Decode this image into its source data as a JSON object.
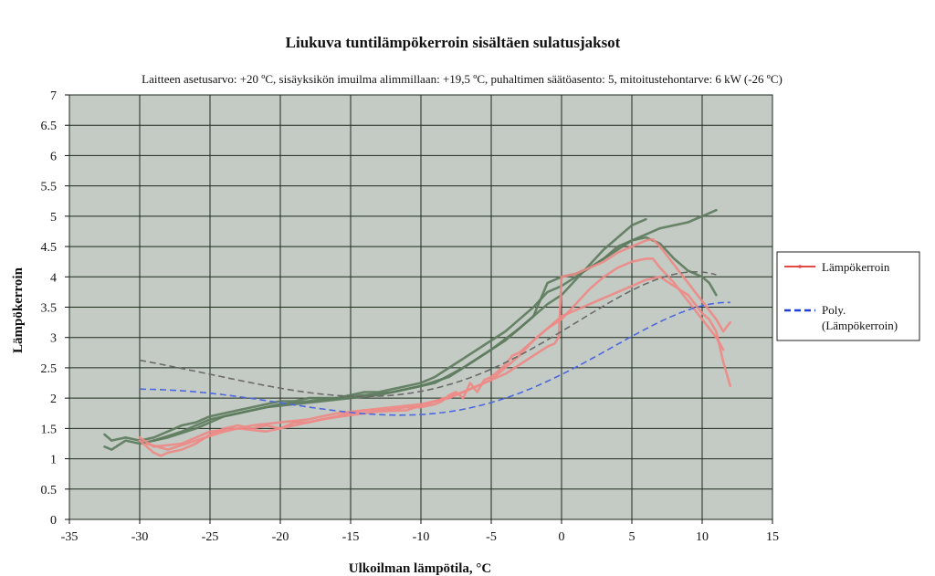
{
  "chart_data": {
    "type": "line",
    "title": "Liukuva tuntilämpökerroin sisältäen sulatusjaksot",
    "subtitle": "Laitteen asetusarvo: +20 ºC, sisäyksikön imuilma alimmillaan: +19,5 ºC, puhaltimen säätöasento: 5, mitoitustehontarve: 6 kW (-26 ºC)",
    "xlabel": "Ulkoilman lämpötila, °C",
    "ylabel": "Lämpökerroin",
    "xlim": [
      -35,
      15
    ],
    "ylim": [
      0,
      7
    ],
    "x_ticks": [
      "-35",
      "-30",
      "-25",
      "-20",
      "-15",
      "-10",
      "-5",
      "0",
      "5",
      "10",
      "15"
    ],
    "y_ticks": [
      "0",
      "0.5",
      "1",
      "1.5",
      "2",
      "2.5",
      "3",
      "3.5",
      "4",
      "4.5",
      "5",
      "5.5",
      "6",
      "6.5",
      "7"
    ],
    "grid": true,
    "legend_position": "right",
    "legend": [
      "Lämpökerroin",
      "Poly.\n(Lämpökerroin)"
    ],
    "colors": {
      "plot_bg": "#c4cbc4",
      "grid": "#1c2a1c",
      "pink": "#ee8a86",
      "green": "#5d7b5d",
      "poly_blue": "#4c68e0",
      "poly_dark": "#6a6a6a",
      "legend_red": "#e24a48",
      "legend_blue": "#1f3fd8"
    },
    "series": [
      {
        "name": "Lämpökerroin",
        "color": "pink",
        "segments": [
          [
            [
              -30,
              1.3
            ],
            [
              -29.5,
              1.2
            ],
            [
              -29,
              1.1
            ],
            [
              -28.5,
              1.05
            ],
            [
              -28,
              1.1
            ],
            [
              -27,
              1.15
            ],
            [
              -26,
              1.25
            ],
            [
              -25,
              1.4
            ],
            [
              -24,
              1.5
            ],
            [
              -23,
              1.55
            ],
            [
              -22,
              1.5
            ],
            [
              -21,
              1.55
            ],
            [
              -20,
              1.5
            ],
            [
              -19,
              1.6
            ],
            [
              -18,
              1.6
            ],
            [
              -17,
              1.65
            ],
            [
              -16,
              1.7
            ],
            [
              -15,
              1.75
            ],
            [
              -14,
              1.8
            ],
            [
              -13,
              1.8
            ],
            [
              -12,
              1.82
            ],
            [
              -11,
              1.85
            ],
            [
              -10,
              1.85
            ],
            [
              -9,
              1.9
            ],
            [
              -8.5,
              1.95
            ],
            [
              -8,
              2.05
            ],
            [
              -7.5,
              2.1
            ],
            [
              -7,
              2.0
            ],
            [
              -6.5,
              2.25
            ],
            [
              -6,
              2.1
            ],
            [
              -5.5,
              2.3
            ],
            [
              -5,
              2.35
            ],
            [
              -4.5,
              2.45
            ],
            [
              -4,
              2.55
            ],
            [
              -3.5,
              2.7
            ],
            [
              -3,
              2.75
            ],
            [
              -2.5,
              2.85
            ],
            [
              -2,
              2.95
            ],
            [
              -1.5,
              3.05
            ],
            [
              -1,
              3.15
            ],
            [
              -0.5,
              3.25
            ],
            [
              0,
              3.35
            ],
            [
              1,
              3.45
            ],
            [
              2,
              3.55
            ],
            [
              3,
              3.65
            ],
            [
              4,
              3.75
            ],
            [
              5,
              3.85
            ],
            [
              6,
              3.95
            ],
            [
              7,
              4.0
            ],
            [
              8,
              3.85
            ],
            [
              9,
              3.7
            ],
            [
              10,
              3.4
            ],
            [
              10.5,
              3.3
            ],
            [
              11,
              3.1
            ],
            [
              11.5,
              2.6
            ],
            [
              12,
              2.2
            ]
          ],
          [
            [
              -30,
              1.35
            ],
            [
              -29,
              1.2
            ],
            [
              -27,
              1.25
            ],
            [
              -25,
              1.45
            ],
            [
              -23,
              1.5
            ],
            [
              -21,
              1.45
            ],
            [
              -19,
              1.55
            ],
            [
              -17,
              1.65
            ],
            [
              -15,
              1.72
            ],
            [
              -13,
              1.78
            ],
            [
              -11,
              1.8
            ],
            [
              -9,
              1.95
            ],
            [
              -7,
              2.1
            ],
            [
              -6,
              2.2
            ],
            [
              -5,
              2.3
            ],
            [
              -4,
              2.4
            ],
            [
              -3,
              2.55
            ],
            [
              -2,
              2.7
            ],
            [
              -1,
              2.85
            ],
            [
              -0.5,
              2.9
            ],
            [
              -0.2,
              3.0
            ],
            [
              0,
              4.0
            ],
            [
              1,
              4.05
            ],
            [
              2,
              4.15
            ],
            [
              3,
              4.25
            ],
            [
              4,
              4.4
            ],
            [
              5,
              4.5
            ],
            [
              6,
              4.6
            ],
            [
              6.5,
              4.62
            ],
            [
              7,
              4.5
            ],
            [
              8,
              4.2
            ],
            [
              9,
              3.9
            ],
            [
              10,
              3.6
            ],
            [
              11,
              3.3
            ],
            [
              11.5,
              3.1
            ],
            [
              12,
              3.25
            ]
          ],
          [
            [
              -29.5,
              1.25
            ],
            [
              -28,
              1.15
            ],
            [
              -26,
              1.3
            ],
            [
              -24,
              1.45
            ],
            [
              -22,
              1.55
            ],
            [
              -20,
              1.6
            ],
            [
              -18,
              1.65
            ],
            [
              -16,
              1.75
            ],
            [
              -14,
              1.8
            ],
            [
              -12,
              1.85
            ],
            [
              -10,
              1.9
            ],
            [
              -8,
              2.0
            ],
            [
              -6,
              2.2
            ],
            [
              -5,
              2.3
            ],
            [
              -4,
              2.5
            ],
            [
              -3,
              2.7
            ],
            [
              -2,
              2.95
            ],
            [
              -1,
              3.15
            ],
            [
              0,
              3.3
            ],
            [
              1,
              3.55
            ],
            [
              2,
              3.8
            ],
            [
              3,
              4.0
            ],
            [
              4,
              4.15
            ],
            [
              5,
              4.25
            ],
            [
              6,
              4.3
            ],
            [
              6.5,
              4.3
            ],
            [
              7,
              4.15
            ],
            [
              8,
              3.9
            ],
            [
              9,
              3.6
            ],
            [
              10,
              3.3
            ],
            [
              11,
              3.0
            ],
            [
              11.5,
              2.8
            ]
          ]
        ]
      },
      {
        "name": "",
        "color": "green",
        "segments": [
          [
            [
              -32.5,
              1.4
            ],
            [
              -32,
              1.3
            ],
            [
              -31,
              1.35
            ],
            [
              -30,
              1.3
            ],
            [
              -29,
              1.35
            ],
            [
              -28,
              1.45
            ],
            [
              -27,
              1.55
            ],
            [
              -26,
              1.6
            ],
            [
              -25,
              1.7
            ],
            [
              -24,
              1.75
            ],
            [
              -23,
              1.8
            ],
            [
              -22,
              1.85
            ],
            [
              -21,
              1.9
            ],
            [
              -20,
              1.95
            ],
            [
              -19,
              1.95
            ],
            [
              -18,
              2.0
            ],
            [
              -17,
              2.0
            ],
            [
              -16,
              2.0
            ],
            [
              -15,
              2.05
            ],
            [
              -14,
              2.1
            ],
            [
              -13,
              2.1
            ],
            [
              -12,
              2.15
            ],
            [
              -11,
              2.2
            ],
            [
              -10,
              2.25
            ],
            [
              -9,
              2.35
            ],
            [
              -8,
              2.5
            ],
            [
              -7,
              2.65
            ],
            [
              -6,
              2.8
            ],
            [
              -5,
              2.95
            ],
            [
              -4,
              3.1
            ],
            [
              -3,
              3.3
            ],
            [
              -2,
              3.5
            ],
            [
              -1,
              3.75
            ],
            [
              0,
              3.85
            ],
            [
              1,
              4.0
            ],
            [
              2,
              4.15
            ],
            [
              3,
              4.3
            ],
            [
              4,
              4.45
            ],
            [
              5,
              4.6
            ],
            [
              6,
              4.7
            ],
            [
              7,
              4.8
            ],
            [
              8,
              4.85
            ],
            [
              9,
              4.9
            ],
            [
              10,
              5.0
            ],
            [
              11,
              5.1
            ]
          ],
          [
            [
              -32.5,
              1.2
            ],
            [
              -32,
              1.15
            ],
            [
              -31,
              1.3
            ],
            [
              -30,
              1.25
            ],
            [
              -28,
              1.35
            ],
            [
              -26,
              1.5
            ],
            [
              -24,
              1.7
            ],
            [
              -22,
              1.8
            ],
            [
              -20,
              1.9
            ],
            [
              -18,
              1.95
            ],
            [
              -16,
              2.0
            ],
            [
              -14,
              2.05
            ],
            [
              -12,
              2.1
            ],
            [
              -10,
              2.2
            ],
            [
              -8,
              2.35
            ],
            [
              -6,
              2.65
            ],
            [
              -4,
              2.95
            ],
            [
              -2,
              3.35
            ],
            [
              -1,
              3.9
            ],
            [
              0,
              4.0
            ],
            [
              1,
              4.05
            ],
            [
              2,
              4.15
            ],
            [
              3,
              4.3
            ],
            [
              4,
              4.5
            ],
            [
              5,
              4.6
            ],
            [
              6,
              4.65
            ],
            [
              7,
              4.55
            ],
            [
              8,
              4.3
            ],
            [
              9,
              4.1
            ],
            [
              10,
              4.0
            ],
            [
              10.5,
              3.9
            ],
            [
              11,
              3.7
            ]
          ],
          [
            [
              -29,
              1.3
            ],
            [
              -27,
              1.45
            ],
            [
              -25,
              1.65
            ],
            [
              -23,
              1.75
            ],
            [
              -21,
              1.85
            ],
            [
              -19,
              1.9
            ],
            [
              -17,
              1.95
            ],
            [
              -15,
              2.0
            ],
            [
              -13,
              2.05
            ],
            [
              -11,
              2.15
            ],
            [
              -9,
              2.25
            ],
            [
              -7,
              2.5
            ],
            [
              -5,
              2.8
            ],
            [
              -3,
              3.15
            ],
            [
              -1,
              3.55
            ],
            [
              0,
              3.7
            ],
            [
              1,
              3.95
            ],
            [
              2,
              4.2
            ],
            [
              3,
              4.45
            ],
            [
              4,
              4.65
            ],
            [
              5,
              4.85
            ],
            [
              6,
              4.95
            ]
          ]
        ]
      },
      {
        "name": "Poly. (Lämpökerroin)",
        "color": "poly_blue",
        "dashed": true,
        "coefficients": [
          2.39,
          0.1152,
          0.003625,
          -0.0002405,
          -1.265e-05,
          -1.525e-07
        ],
        "x_range": [
          -30,
          12
        ]
      },
      {
        "name": "",
        "color": "poly_dark",
        "dashed": true,
        "coefficients": [
          3.1,
          0.14,
          0.0015,
          -0.0004,
          -1.55e-05,
          -1.7e-07
        ],
        "x_range": [
          -30,
          11
        ]
      }
    ]
  }
}
